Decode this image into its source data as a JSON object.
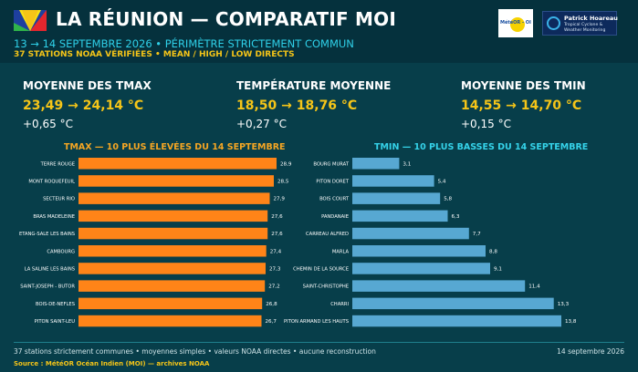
{
  "header": {
    "title": "LA RÉUNION — COMPARATIF MOI",
    "subtitle": "13 → 14 SEPTEMBRE 2026 • PÉRIMÈTRE STRICTEMENT COMMUN",
    "subline": "37 STATIONS NOAA VÉRIFIÉES • MEAN / HIGH / LOW DIRECTS",
    "logo_meteor_text": "MétéOR - OI",
    "logo_ph_name": "Patrick Hoareau",
    "logo_ph_line1": "Tropical Cyclone &",
    "logo_ph_line2": "Weather Monitoring"
  },
  "kpis": [
    {
      "label": "MOYENNE DES TMAX",
      "value": "23,49 → 24,14 °C",
      "delta": "+0,65 °C"
    },
    {
      "label": "TEMPÉRATURE MOYENNE",
      "value": "18,50 → 18,76 °C",
      "delta": "+0,27 °C"
    },
    {
      "label": "MOYENNE DES TMIN",
      "value": "14,55 → 14,70 °C",
      "delta": "+0,15 °C"
    }
  ],
  "chart_data": [
    {
      "type": "bar",
      "orientation": "horizontal",
      "title": "TMAX — 10 PLUS ÉLEVÉES DU 14 SEPTEMBRE",
      "color": "#ff8418",
      "categories": [
        "TERRE ROUGE",
        "MONT ROQUEFEUIL",
        "SECTEUR RIO",
        "BRAS MADELEINE",
        "ETANG-SALE LES BAINS",
        "CAMBOURG",
        "LA SALINE LES BAINS",
        "SAINT-JOSEPH - BUTOR",
        "BOIS-DE-NEFLES",
        "PITON SAINT-LEU"
      ],
      "values": [
        28.9,
        28.5,
        27.9,
        27.6,
        27.6,
        27.4,
        27.3,
        27.2,
        26.8,
        26.7
      ],
      "labels": [
        "28,9",
        "28,5",
        "27,9",
        "27,6",
        "27,6",
        "27,4",
        "27,3",
        "27,2",
        "26,8",
        "26,7"
      ],
      "xlim": [
        0,
        28.9
      ]
    },
    {
      "type": "bar",
      "orientation": "horizontal",
      "title": "TMIN — 10 PLUS BASSES DU 14 SEPTEMBRE",
      "color": "#57a8d2",
      "categories": [
        "BOURG MURAT",
        "PITON DORET",
        "BOIS COURT",
        "PANDANAIE",
        "CARREAU ALFRED",
        "MARLA",
        "CHEMIN DE LA SOURCE",
        "SAINT-CHRISTOPHE",
        "CHARRI",
        "PITON ARMAND LES HAUTS"
      ],
      "values": [
        3.1,
        5.4,
        5.8,
        6.3,
        7.7,
        8.8,
        9.1,
        11.4,
        13.3,
        13.8
      ],
      "labels": [
        "3,1",
        "5,4",
        "5,8",
        "6,3",
        "7,7",
        "8,8",
        "9,1",
        "11,4",
        "13,3",
        "13,8"
      ],
      "xlim": [
        0,
        13.8
      ]
    }
  ],
  "footer": {
    "note": "37 stations strictement communes • moyennes simples • valeurs NOAA directes • aucune reconstruction",
    "source": "Source : MétéOR Océan Indien (MOI) — archives NOAA",
    "date": "14 septembre 2026"
  }
}
